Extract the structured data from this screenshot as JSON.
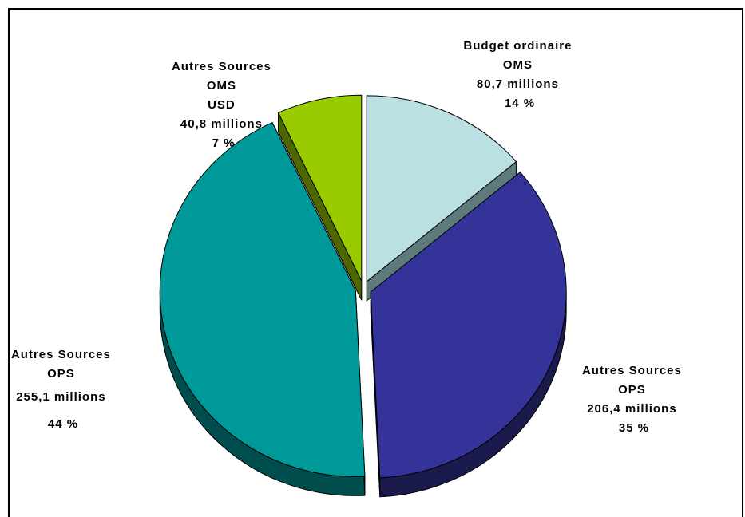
{
  "chart_data": {
    "type": "pie",
    "three_d": true,
    "exploded": true,
    "slices": [
      {
        "lines": [
          "Budget ordinaire",
          "OMS",
          "80,7 millions",
          "14 %"
        ],
        "value": 80.7,
        "percent": 14,
        "color": "#BBE0E3",
        "side_color": "#5F7A7B"
      },
      {
        "lines": [
          "Autres Sources",
          "OPS",
          "206,4 millions",
          "35 %"
        ],
        "value": 206.4,
        "percent": 35,
        "color": "#333399",
        "side_color": "#1A1A4D"
      },
      {
        "lines": [
          "Autres Sources",
          "OPS",
          "255,1 millions",
          "44 %"
        ],
        "value": 255.1,
        "percent": 44,
        "color": "#009999",
        "side_color": "#004D4D"
      },
      {
        "lines": [
          "Autres Sources",
          "OMS",
          "USD",
          "40,8 millions",
          "7 %"
        ],
        "value": 40.8,
        "percent": 7,
        "color": "#99CC00",
        "side_color": "#4D6600"
      }
    ]
  }
}
